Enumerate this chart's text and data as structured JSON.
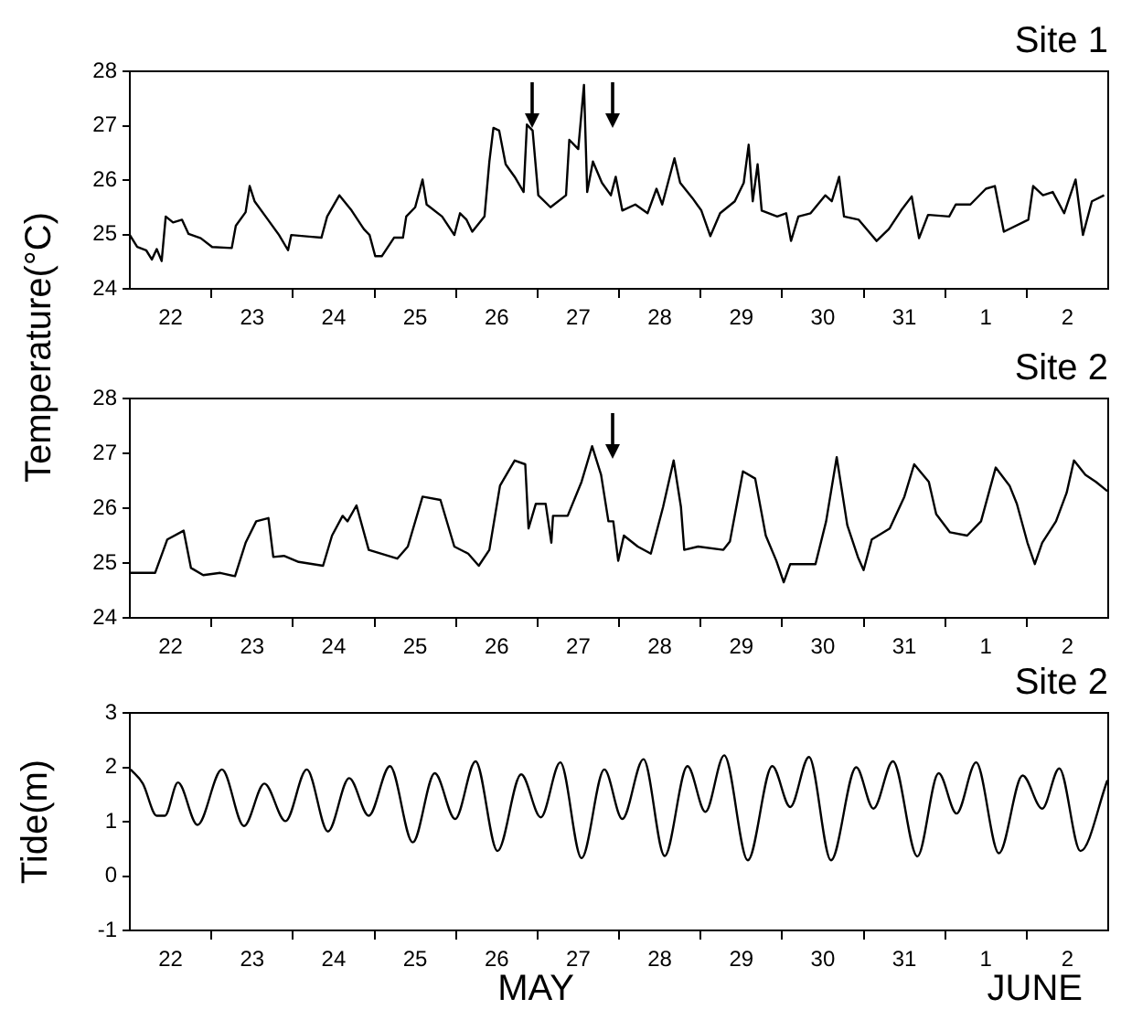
{
  "chart_data": [
    {
      "type": "line",
      "title": "Site 1",
      "ylabel": "Temperature(°C)",
      "color": "#000000",
      "x": [
        "--05-22T00:00",
        "--05-22T02:10",
        "--05-22T04:48",
        "--05-22T06:29",
        "--05-22T07:55",
        "--05-22T09:22",
        "--05-22T10:34",
        "--05-22T12:43",
        "--05-22T15:22",
        "--05-22T17:17",
        "--05-22T20:53",
        "--05-23T00:14",
        "--05-23T06:00",
        "--05-23T07:12",
        "--05-23T10:05",
        "--05-23T11:17",
        "--05-23T12:43",
        "--05-23T16:19",
        "--05-23T19:55",
        "--05-23T22:34",
        "--05-23T23:31",
        "--05-24T04:48",
        "--05-24T08:24",
        "--05-24T10:05",
        "--05-24T13:41",
        "--05-24T17:17",
        "--05-24T20:53",
        "--05-24T22:34",
        "--05-25T00:14",
        "--05-25T02:10",
        "--05-25T05:46",
        "--05-25T08:24",
        "--05-25T09:22",
        "--05-25T12:00",
        "--05-25T14:10",
        "--05-25T15:22",
        "--05-25T19:55",
        "--05-25T23:31",
        "--05-26T01:12",
        "--05-26T03:07",
        "--05-26T04:48",
        "--05-26T08:24",
        "--05-26T09:50",
        "--05-26T11:02",
        "--05-26T12:43",
        "--05-26T14:38",
        "--05-26T17:17",
        "--05-26T19:55",
        "--05-26T20:53",
        "--05-26T22:34",
        "--05-27T00:14",
        "--05-27T03:50",
        "--05-27T08:24",
        "--05-27T09:22",
        "--05-27T12:00",
        "--05-27T13:41",
        "--05-27T14:38",
        "--05-27T16:19",
        "--05-27T18:58",
        "--05-27T21:36",
        "--05-27T23:02",
        "--05-28T00:58",
        "--05-28T04:48",
        "--05-28T08:24",
        "--05-28T11:02",
        "--05-28T12:43",
        "--05-28T16:19",
        "--05-28T18:00",
        "--05-28T21:36",
        "--05-29T00:14",
        "--05-29T02:53",
        "--05-29T05:46",
        "--05-29T10:05",
        "--05-29T12:43",
        "--05-29T14:10",
        "--05-29T15:22",
        "--05-29T16:48",
        "--05-29T18:00",
        "--05-29T22:34",
        "--05-30T01:12",
        "--05-30T02:38",
        "--05-30T04:48",
        "--05-30T08:24",
        "--05-30T12:43",
        "--05-30T14:38",
        "--05-30T16:48",
        "--05-30T18:14",
        "--05-30T22:34",
        "--05-31T03:50",
        "--05-31T07:26",
        "--05-31T11:02",
        "--05-31T14:10",
        "--05-31T16:19",
        "--05-31T18:58",
        "--06-01T01:12",
        "--06-01T03:07",
        "--06-01T07:26",
        "--06-01T12:00",
        "--06-01T14:38",
        "--06-01T17:17",
        "--06-02T00:29",
        "--06-02T01:55",
        "--06-02T04:48",
        "--06-02T07:41",
        "--06-02T11:02",
        "--06-02T14:24",
        "--06-02T16:34",
        "--06-02T19:12",
        "--06-02T22:48"
      ],
      "values": [
        24.99,
        24.77,
        24.71,
        24.54,
        24.73,
        24.51,
        25.33,
        25.22,
        25.27,
        25.01,
        24.93,
        24.77,
        24.75,
        25.16,
        25.41,
        25.89,
        25.61,
        25.3,
        24.99,
        24.71,
        24.99,
        24.96,
        24.94,
        25.33,
        25.72,
        25.44,
        25.1,
        24.99,
        24.6,
        24.6,
        24.94,
        24.94,
        25.33,
        25.5,
        26.01,
        25.55,
        25.33,
        24.99,
        25.39,
        25.27,
        25.05,
        25.33,
        26.34,
        26.96,
        26.91,
        26.29,
        26.06,
        25.78,
        27.02,
        26.91,
        25.72,
        25.5,
        25.72,
        26.74,
        26.57,
        27.75,
        25.78,
        26.34,
        25.95,
        25.72,
        26.06,
        25.44,
        25.55,
        25.39,
        25.84,
        25.55,
        26.4,
        25.95,
        25.67,
        25.44,
        24.97,
        25.39,
        25.61,
        25.95,
        26.65,
        25.61,
        26.29,
        25.44,
        25.33,
        25.39,
        24.88,
        25.33,
        25.39,
        25.72,
        25.61,
        26.06,
        25.33,
        25.27,
        24.88,
        25.1,
        25.44,
        25.7,
        24.93,
        25.36,
        25.33,
        25.55,
        25.55,
        25.84,
        25.89,
        25.05,
        25.27,
        25.89,
        25.72,
        25.78,
        25.39,
        26.01,
        24.99,
        25.61,
        25.72
      ],
      "xlim": [
        "--05-22",
        "--06-03"
      ],
      "xticks": [
        {
          "value": "--05-22T12:00",
          "label": "22"
        },
        {
          "value": "--05-23",
          "label": null
        },
        {
          "value": "--05-23T12:00",
          "label": "23"
        },
        {
          "value": "--05-24",
          "label": null
        },
        {
          "value": "--05-24T12:00",
          "label": "24"
        },
        {
          "value": "--05-25",
          "label": null
        },
        {
          "value": "--05-25T12:00",
          "label": "25"
        },
        {
          "value": "--05-26",
          "label": null
        },
        {
          "value": "--05-26T12:00",
          "label": "26"
        },
        {
          "value": "--05-27",
          "label": null
        },
        {
          "value": "--05-27T12:00",
          "label": "27"
        },
        {
          "value": "--05-28",
          "label": null
        },
        {
          "value": "--05-28T12:00",
          "label": "28"
        },
        {
          "value": "--05-29",
          "label": null
        },
        {
          "value": "--05-29T12:00",
          "label": "29"
        },
        {
          "value": "--05-30",
          "label": null
        },
        {
          "value": "--05-30T12:00",
          "label": "30"
        },
        {
          "value": "--05-31",
          "label": null
        },
        {
          "value": "--05-31T12:00",
          "label": "31"
        },
        {
          "value": "--06-01",
          "label": null
        },
        {
          "value": "--06-01T12:00",
          "label": "1"
        },
        {
          "value": "--06-02",
          "label": null
        },
        {
          "value": "--06-02T12:00",
          "label": "2"
        }
      ],
      "ylim": [
        24,
        28
      ],
      "yticks": [
        24,
        25,
        26,
        27,
        28
      ]
    },
    {
      "type": "line",
      "title": "Site 2",
      "color": "#000000",
      "x": [
        "--05-22T00:14",
        "--05-22T07:26",
        "--05-22T11:02",
        "--05-22T15:50",
        "--05-22T18:00",
        "--05-22T21:36",
        "--05-23T02:38",
        "--05-23T06:58",
        "--05-23T10:05",
        "--05-23T13:12",
        "--05-23T16:48",
        "--05-23T18:14",
        "--05-23T21:22",
        "--05-24T01:41",
        "--05-24T08:53",
        "--05-24T11:31",
        "--05-24T14:38",
        "--05-24T16:05",
        "--05-24T18:43",
        "--05-24T22:19",
        "--05-25T06:43",
        "--05-25T09:50",
        "--05-25T14:10",
        "--05-25T19:26",
        "--05-25T23:31",
        "--05-26T03:36",
        "--05-26T06:43",
        "--05-26T09:50",
        "--05-26T12:58",
        "--05-26T17:17",
        "--05-26T20:24",
        "--05-26T21:22",
        "--05-26T23:31",
        "--05-27T02:24",
        "--05-27T04:05",
        "--05-27T04:34",
        "--05-27T08:53",
        "--05-27T12:58",
        "--05-27T16:05",
        "--05-27T18:43",
        "--05-27T20:53",
        "--05-27T22:19",
        "--05-27T23:46",
        "--05-28T01:26",
        "--05-28T05:31",
        "--05-28T09:22",
        "--05-28T12:58",
        "--05-28T16:05",
        "--05-28T18:14",
        "--05-28T19:12",
        "--05-28T23:17",
        "--05-29T06:43",
        "--05-29T08:38",
        "--05-29T12:29",
        "--05-29T16:05",
        "--05-29T19:12",
        "--05-29T22:19",
        "--05-30T00:29",
        "--05-30T02:24",
        "--05-30T09:50",
        "--05-30T12:58",
        "--05-30T16:05",
        "--05-30T19:12",
        "--05-30T22:19",
        "--05-31T00:00",
        "--05-31T02:24",
        "--05-31T07:41",
        "--05-31T12:00",
        "--05-31T14:53",
        "--05-31T19:12",
        "--05-31T21:22",
        "--06-01T01:26",
        "--06-01T06:29",
        "--06-01T10:34",
        "--06-01T14:53",
        "--06-01T18:58",
        "--06-01T21:07",
        "--06-02T00:14",
        "--06-02T02:24",
        "--06-02T04:34",
        "--06-02T08:38",
        "--06-02T11:46",
        "--06-02T13:55",
        "--06-02T17:17",
        "--06-02T20:24",
        "--06-02T23:46"
      ],
      "values": [
        24.82,
        24.82,
        25.43,
        25.59,
        24.91,
        24.78,
        24.82,
        24.76,
        25.37,
        25.76,
        25.82,
        25.11,
        25.13,
        25.02,
        24.95,
        25.5,
        25.86,
        25.76,
        26.05,
        25.24,
        25.08,
        25.3,
        26.21,
        26.15,
        25.3,
        25.17,
        24.95,
        25.24,
        26.41,
        26.87,
        26.8,
        25.63,
        26.08,
        26.08,
        25.37,
        25.86,
        25.86,
        26.48,
        27.13,
        26.61,
        25.76,
        25.76,
        25.04,
        25.5,
        25.3,
        25.17,
        26.02,
        26.87,
        26.02,
        25.24,
        25.3,
        25.24,
        25.39,
        26.67,
        26.54,
        25.5,
        25.04,
        24.65,
        24.98,
        24.98,
        25.76,
        26.93,
        25.69,
        25.11,
        24.87,
        25.43,
        25.63,
        26.21,
        26.8,
        26.48,
        25.89,
        25.56,
        25.5,
        25.76,
        26.74,
        26.41,
        26.08,
        25.37,
        24.98,
        25.37,
        25.76,
        26.28,
        26.87,
        26.61,
        26.48,
        26.31
      ],
      "xlim": [
        "--05-22",
        "--06-03"
      ],
      "xticks": [
        {
          "value": "--05-22T12:00",
          "label": "22"
        },
        {
          "value": "--05-23",
          "label": null
        },
        {
          "value": "--05-23T12:00",
          "label": "23"
        },
        {
          "value": "--05-24",
          "label": null
        },
        {
          "value": "--05-24T12:00",
          "label": "24"
        },
        {
          "value": "--05-25",
          "label": null
        },
        {
          "value": "--05-25T12:00",
          "label": "25"
        },
        {
          "value": "--05-26",
          "label": null
        },
        {
          "value": "--05-26T12:00",
          "label": "26"
        },
        {
          "value": "--05-27",
          "label": null
        },
        {
          "value": "--05-27T12:00",
          "label": "27"
        },
        {
          "value": "--05-28",
          "label": null
        },
        {
          "value": "--05-28T12:00",
          "label": "28"
        },
        {
          "value": "--05-29",
          "label": null
        },
        {
          "value": "--05-29T12:00",
          "label": "29"
        },
        {
          "value": "--05-30",
          "label": null
        },
        {
          "value": "--05-30T12:00",
          "label": "30"
        },
        {
          "value": "--05-31",
          "label": null
        },
        {
          "value": "--05-31T12:00",
          "label": "31"
        },
        {
          "value": "--06-01",
          "label": null
        },
        {
          "value": "--06-01T12:00",
          "label": "1"
        },
        {
          "value": "--06-02",
          "label": null
        },
        {
          "value": "--06-02T12:00",
          "label": "2"
        }
      ],
      "ylim": [
        24,
        28
      ],
      "yticks": [
        24,
        25,
        26,
        27,
        28
      ]
    },
    {
      "type": "line",
      "title": "Site 2",
      "ylabel": "Tide(m)",
      "color": "#000000",
      "annotations": [
        "MAY",
        "JUNE"
      ],
      "x": [
        "--05-22T00:14",
        "--05-22T03:50",
        "--05-22T07:55",
        "--05-22T10:19",
        "--05-22T14:10",
        "--05-22T19:55",
        "--05-23T03:07",
        "--05-23T09:36",
        "--05-23T15:36",
        "--05-23T21:50",
        "--05-24T04:05",
        "--05-24T10:19",
        "--05-24T16:34",
        "--05-24T22:19",
        "--05-25T04:34",
        "--05-25T11:17",
        "--05-25T17:46",
        "--05-25T23:46",
        "--05-26T05:46",
        "--05-26T12:14",
        "--05-26T19:12",
        "--05-27T00:58",
        "--05-27T06:43",
        "--05-27T12:58",
        "--05-27T19:41",
        "--05-28T00:58",
        "--05-28T07:12",
        "--05-28T13:26",
        "--05-28T20:10",
        "--05-29T01:26",
        "--05-29T06:58",
        "--05-29T13:55",
        "--05-29T21:07",
        "--05-30T02:24",
        "--05-30T07:55",
        "--05-30T14:24",
        "--05-30T21:50",
        "--05-31T02:53",
        "--05-31T08:38",
        "--05-31T15:50",
        "--05-31T22:05",
        "--06-01T03:22",
        "--06-01T09:07",
        "--06-01T15:50",
        "--06-01T22:48",
        "--06-02T04:34",
        "--06-02T09:36",
        "--06-02T15:50",
        "--06-02T23:46"
      ],
      "values": [
        1.96,
        1.7,
        1.11,
        1.11,
        1.72,
        0.94,
        1.96,
        0.92,
        1.7,
        1.01,
        1.96,
        0.82,
        1.8,
        1.11,
        2.02,
        0.62,
        1.89,
        1.05,
        2.11,
        0.46,
        1.87,
        1.08,
        2.09,
        0.33,
        1.96,
        1.05,
        2.15,
        0.37,
        2.02,
        1.18,
        2.22,
        0.29,
        2.02,
        1.27,
        2.19,
        0.29,
        2.0,
        1.24,
        2.11,
        0.36,
        1.89,
        1.15,
        2.09,
        0.42,
        1.85,
        1.24,
        1.98,
        0.46,
        1.76
      ],
      "xlim": [
        "--05-22",
        "--06-03"
      ],
      "xticks": [
        {
          "value": "--05-22T12:00",
          "label": "22"
        },
        {
          "value": "--05-23",
          "label": null
        },
        {
          "value": "--05-23T12:00",
          "label": "23"
        },
        {
          "value": "--05-24",
          "label": null
        },
        {
          "value": "--05-24T12:00",
          "label": "24"
        },
        {
          "value": "--05-25",
          "label": null
        },
        {
          "value": "--05-25T12:00",
          "label": "25"
        },
        {
          "value": "--05-26",
          "label": null
        },
        {
          "value": "--05-26T12:00",
          "label": "26"
        },
        {
          "value": "--05-27",
          "label": null
        },
        {
          "value": "--05-27T12:00",
          "label": "27"
        },
        {
          "value": "--05-28",
          "label": null
        },
        {
          "value": "--05-28T12:00",
          "label": "28"
        },
        {
          "value": "--05-29",
          "label": null
        },
        {
          "value": "--05-29T12:00",
          "label": "29"
        },
        {
          "value": "--05-30",
          "label": null
        },
        {
          "value": "--05-30T12:00",
          "label": "30"
        },
        {
          "value": "--05-31",
          "label": null
        },
        {
          "value": "--05-31T12:00",
          "label": "31"
        },
        {
          "value": "--06-01",
          "label": null
        },
        {
          "value": "--06-01T12:00",
          "label": "1"
        },
        {
          "value": "--06-02",
          "label": null
        },
        {
          "value": "--06-02T12:00",
          "label": "2"
        }
      ],
      "ylim": [
        -1,
        3
      ],
      "yticks": [
        -1,
        0,
        1,
        2,
        3
      ]
    }
  ]
}
